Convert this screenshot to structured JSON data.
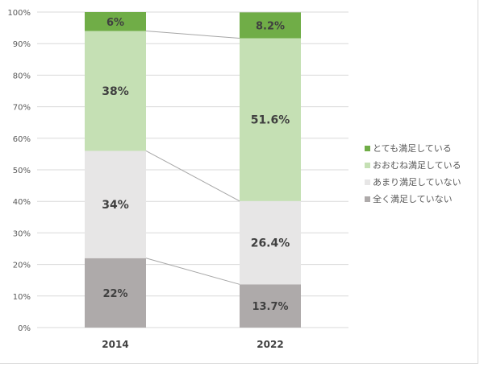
{
  "chart_data": {
    "type": "bar",
    "stacked": true,
    "categories": [
      "2014",
      "2022"
    ],
    "series": [
      {
        "name": "全く満足していない",
        "values": [
          22,
          13.7
        ],
        "labels": [
          "22%",
          "13.7%"
        ],
        "color": "#aeaaaa"
      },
      {
        "name": "あまり満足していない",
        "values": [
          34,
          26.4
        ],
        "labels": [
          "34%",
          "26.4%"
        ],
        "color": "#e7e6e6"
      },
      {
        "name": "おおむね満足している",
        "values": [
          38,
          51.6
        ],
        "labels": [
          "38%",
          "51.6%"
        ],
        "color": "#c5e0b4"
      },
      {
        "name": "とても満足している",
        "values": [
          6,
          8.2
        ],
        "labels": [
          "6%",
          "8.2%"
        ],
        "color": "#70ad47"
      }
    ],
    "legend_order": [
      "とても満足している",
      "おおむね満足している",
      "あまり満足していない",
      "全く満足していない"
    ],
    "yticks": [
      "0%",
      "10%",
      "20%",
      "30%",
      "40%",
      "50%",
      "60%",
      "70%",
      "80%",
      "90%",
      "100%"
    ],
    "ylim": [
      0,
      100
    ],
    "grid": true,
    "series_lines": true,
    "legend_position": "right",
    "title": "",
    "xlabel": "",
    "ylabel": ""
  }
}
